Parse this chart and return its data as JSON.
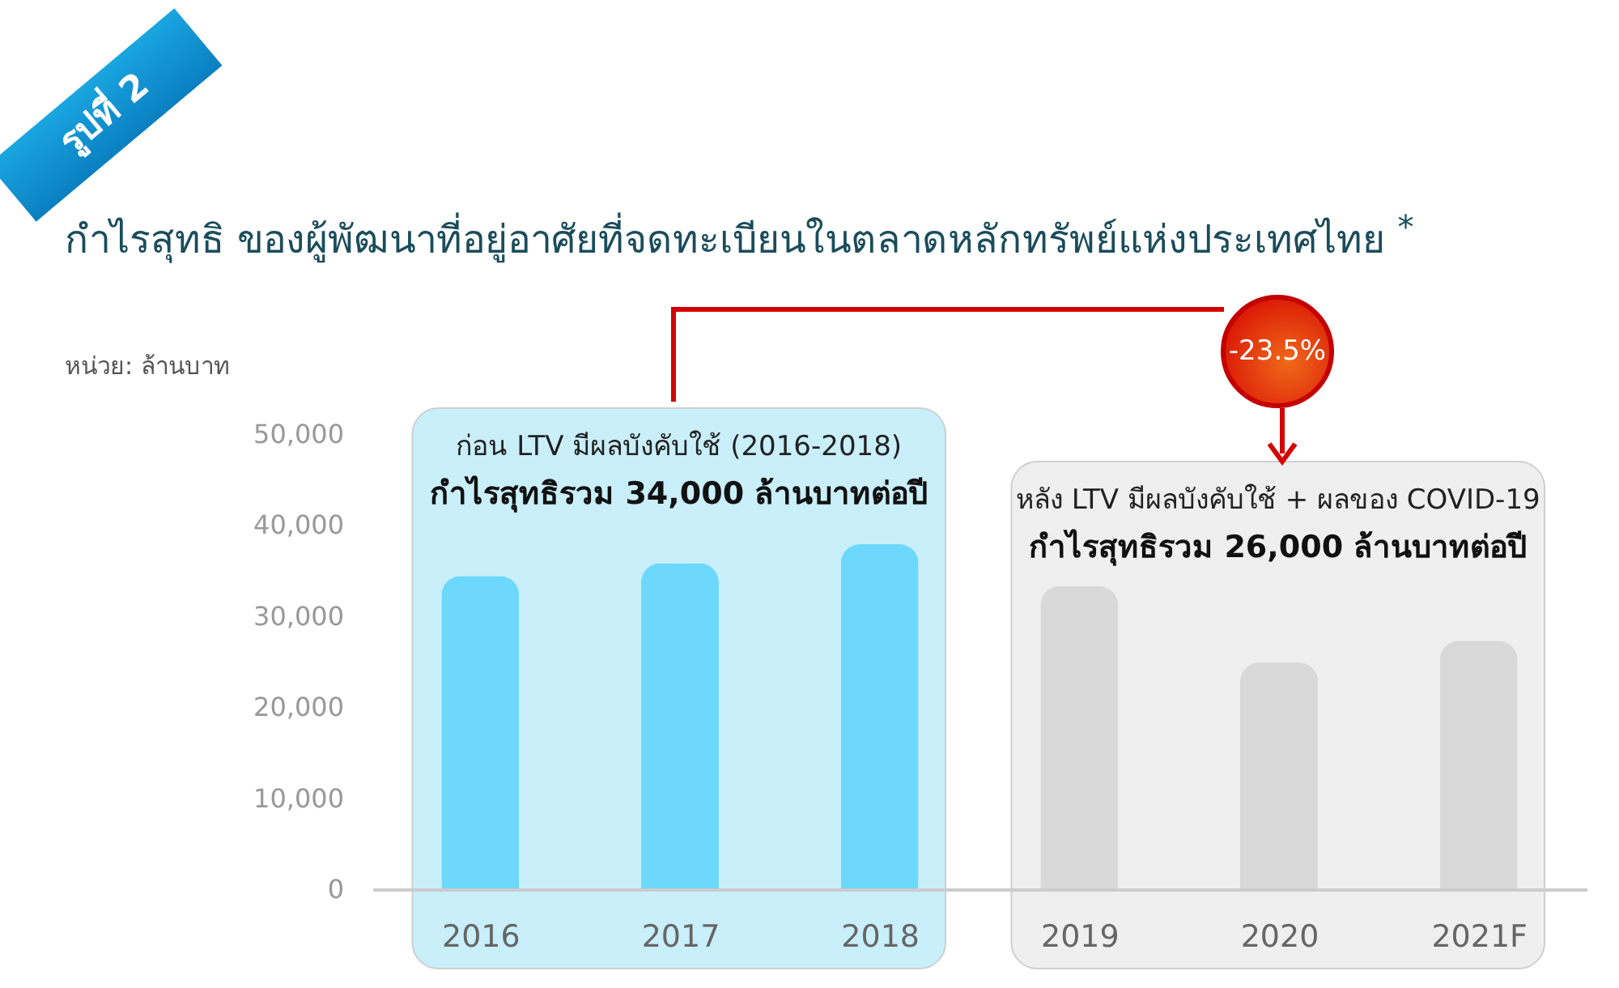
{
  "chart_data": {
    "type": "bar",
    "title": "กำไรสุทธิ ของผู้พัฒนาที่อยู่อาศัยที่จดทะเบียนในตลาดหลักทรัพย์แห่งประเทศไทย $^{*}$",
    "ylabel": "หน่วย: ล้านบาท",
    "categories": [
      "2016",
      "2017",
      "2018",
      "2019",
      "2020",
      "2021F"
    ],
    "values": [
      34400,
      35800,
      37900,
      33300,
      24900,
      27300
    ],
    "colors": [
      "#6dd8fc",
      "#6dd8fc",
      "#6dd8fc",
      "#d9d9d9",
      "#d9d9d9",
      "#d9d9d9"
    ],
    "ylim": [
      0,
      50000
    ],
    "yticks": [
      0,
      {
        "value": 10000,
        "label": "10,000"
      },
      {
        "value": 20000,
        "label": "20,000"
      },
      {
        "value": 30000,
        "label": "30,000"
      },
      {
        "value": 40000,
        "label": "40,000"
      },
      {
        "value": 50000,
        "label": "50,000"
      }
    ],
    "bands": [
      {
        "axis": "x",
        "from": "2016",
        "to": "2018",
        "label": "ก่อน LTV มีผลบังคับใช้ (2016-2018)\nกำไรสุทธิรวม 34,000 ล้านบาทต่อปี",
        "color": "#c9effb"
      },
      {
        "axis": "x",
        "from": "2019",
        "to": "2021F",
        "label": "หลัง LTV มีผลบังคับใช้ + ผลของ COVID-19\nกำไรสุทธิรวม 26,000 ล้านบาทต่อปี",
        "color": "#efefef"
      }
    ],
    "annotations": [
      "รูปที่ 2",
      "-23.5%"
    ]
  }
}
